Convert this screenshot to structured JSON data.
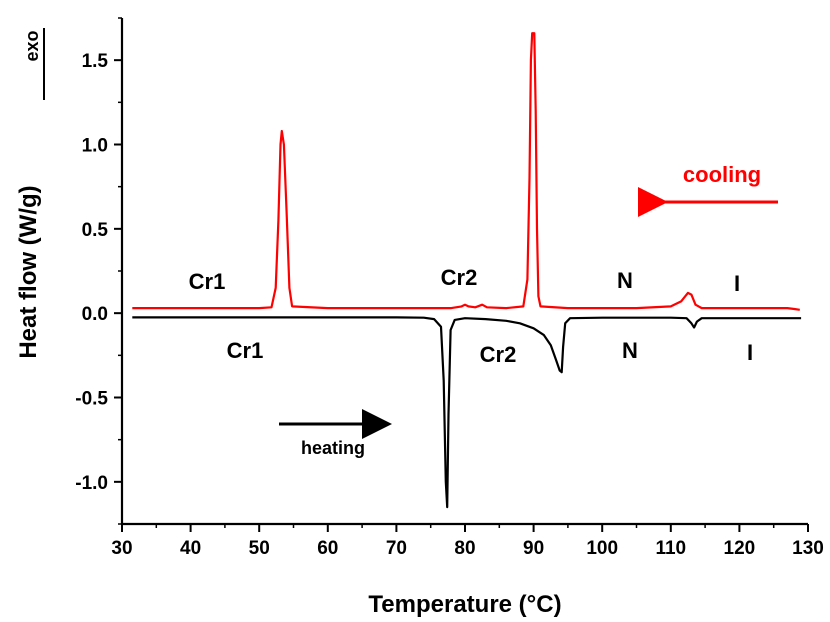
{
  "chart_data": {
    "type": "line",
    "title": "",
    "xlabel": "Temperature (°C)",
    "ylabel": "Heat flow (W/g)",
    "exo_label": "exo",
    "xlim": [
      30,
      130
    ],
    "ylim": [
      -1.25,
      1.75
    ],
    "xticks": [
      30,
      40,
      50,
      60,
      70,
      80,
      90,
      100,
      110,
      120,
      130
    ],
    "yticks": [
      -1.0,
      -0.5,
      0.0,
      0.5,
      1.0,
      1.5
    ],
    "ytick_labels": [
      "-1.0",
      "-0.5",
      "0.0",
      "0.5",
      "1.0",
      "1.5"
    ],
    "grid": false,
    "series": [
      {
        "name": "cooling",
        "color": "#ff0000",
        "points": [
          [
            31.5,
            0.03
          ],
          [
            40,
            0.03
          ],
          [
            50,
            0.03
          ],
          [
            51.8,
            0.035
          ],
          [
            52.4,
            0.15
          ],
          [
            52.8,
            0.55
          ],
          [
            53.1,
            1.0
          ],
          [
            53.3,
            1.08
          ],
          [
            53.6,
            1.0
          ],
          [
            54.0,
            0.6
          ],
          [
            54.4,
            0.15
          ],
          [
            54.8,
            0.04
          ],
          [
            60,
            0.03
          ],
          [
            70,
            0.03
          ],
          [
            78,
            0.03
          ],
          [
            79.5,
            0.04
          ],
          [
            80,
            0.05
          ],
          [
            80.5,
            0.04
          ],
          [
            81.5,
            0.035
          ],
          [
            82.5,
            0.05
          ],
          [
            83.2,
            0.035
          ],
          [
            86,
            0.03
          ],
          [
            88.5,
            0.04
          ],
          [
            89.1,
            0.2
          ],
          [
            89.4,
            0.8
          ],
          [
            89.6,
            1.5
          ],
          [
            89.8,
            1.66
          ],
          [
            90.1,
            1.66
          ],
          [
            90.3,
            1.2
          ],
          [
            90.5,
            0.5
          ],
          [
            90.7,
            0.1
          ],
          [
            91,
            0.04
          ],
          [
            95,
            0.03
          ],
          [
            105,
            0.03
          ],
          [
            110,
            0.04
          ],
          [
            111.5,
            0.07
          ],
          [
            112.5,
            0.12
          ],
          [
            113,
            0.11
          ],
          [
            113.6,
            0.05
          ],
          [
            114.5,
            0.03
          ],
          [
            120,
            0.03
          ],
          [
            127,
            0.03
          ],
          [
            128,
            0.025
          ],
          [
            128.8,
            0.02
          ]
        ]
      },
      {
        "name": "heating",
        "color": "#000000",
        "points": [
          [
            31.5,
            -0.025
          ],
          [
            40,
            -0.025
          ],
          [
            50,
            -0.025
          ],
          [
            60,
            -0.025
          ],
          [
            70,
            -0.025
          ],
          [
            74,
            -0.027
          ],
          [
            75.5,
            -0.035
          ],
          [
            76.5,
            -0.08
          ],
          [
            76.9,
            -0.4
          ],
          [
            77.2,
            -1.0
          ],
          [
            77.4,
            -1.15
          ],
          [
            77.6,
            -0.6
          ],
          [
            77.9,
            -0.1
          ],
          [
            78.5,
            -0.04
          ],
          [
            80,
            -0.03
          ],
          [
            83,
            -0.035
          ],
          [
            86,
            -0.045
          ],
          [
            88,
            -0.06
          ],
          [
            90,
            -0.09
          ],
          [
            91.5,
            -0.13
          ],
          [
            92.5,
            -0.19
          ],
          [
            93.3,
            -0.28
          ],
          [
            93.8,
            -0.34
          ],
          [
            94.1,
            -0.35
          ],
          [
            94.3,
            -0.2
          ],
          [
            94.6,
            -0.06
          ],
          [
            95.3,
            -0.03
          ],
          [
            100,
            -0.027
          ],
          [
            110,
            -0.027
          ],
          [
            112.3,
            -0.03
          ],
          [
            113,
            -0.06
          ],
          [
            113.4,
            -0.085
          ],
          [
            113.8,
            -0.05
          ],
          [
            114.5,
            -0.03
          ],
          [
            120,
            -0.03
          ],
          [
            129,
            -0.03
          ]
        ]
      }
    ],
    "annotations": {
      "cooling": "cooling",
      "heating": "heating",
      "red_cr1": "Cr1",
      "red_cr2": "Cr2",
      "red_n": "N",
      "red_i": "I",
      "black_cr1": "Cr1",
      "black_cr2": "Cr2",
      "black_n": "N",
      "black_i": "I"
    }
  }
}
